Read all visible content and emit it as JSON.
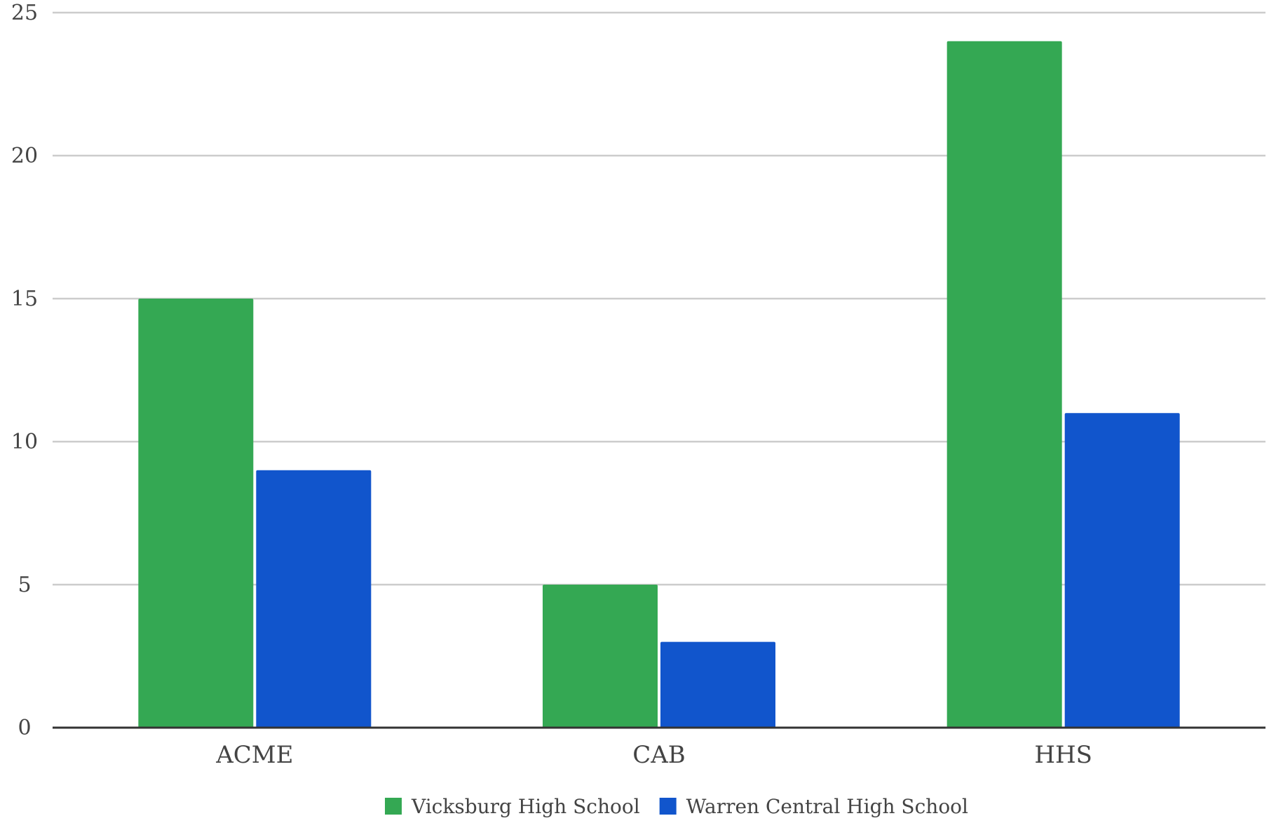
{
  "chart_data": {
    "type": "bar",
    "title": "",
    "xlabel": "",
    "ylabel": "",
    "categories": [
      "ACME",
      "CAB",
      "HHS"
    ],
    "series": [
      {
        "name": "Vicksburg High School",
        "values": [
          15,
          5,
          24
        ],
        "color": "#34a853"
      },
      {
        "name": "Warren Central High School",
        "values": [
          9,
          3,
          11
        ],
        "color": "#1155cc"
      }
    ],
    "ylim": [
      0,
      25
    ],
    "yticks": [
      0,
      5,
      10,
      15,
      20,
      25
    ],
    "grid": true,
    "legend_position": "bottom",
    "gridline_color": "#cccccc",
    "axis_color": "#333333"
  }
}
